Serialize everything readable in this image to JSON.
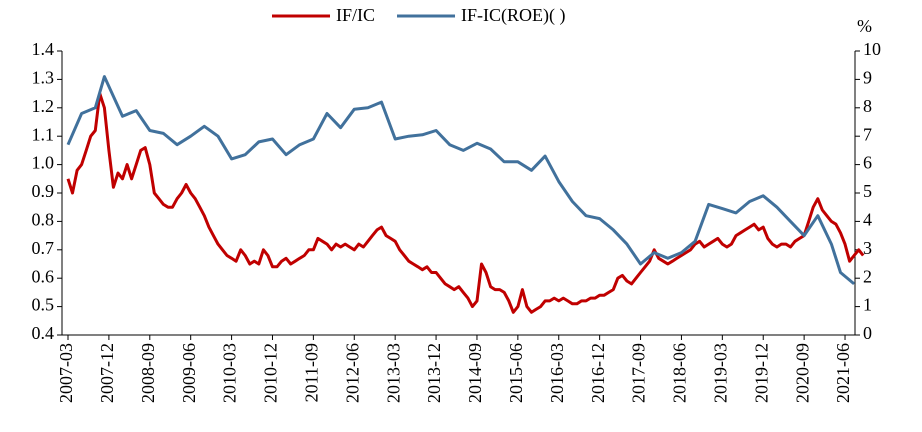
{
  "chart_data": {
    "type": "line",
    "legend": "top",
    "y2label": "%",
    "ylim": [
      0.4,
      1.4
    ],
    "yticks": [
      0.4,
      0.5,
      0.6,
      0.7,
      0.8,
      0.9,
      {
        "value": 1,
        "label": "1.0"
      },
      1.1,
      1.2,
      1.3,
      1.4
    ],
    "y2lim": [
      0,
      10
    ],
    "y2ticks": [
      0,
      1,
      2,
      3,
      4,
      5,
      6,
      7,
      8,
      9,
      10
    ],
    "xticks": [
      "2007-03",
      "2007-12",
      "2008-09",
      "2009-06",
      "2010-03",
      "2010-12",
      "2011-09",
      "2012-06",
      "2013-03",
      "2013-12",
      "2014-09",
      "2015-06",
      "2016-03",
      "2016-12",
      "2017-09",
      "2018-06",
      "2019-03",
      "2019-12",
      "2020-09",
      "2021-06"
    ],
    "series": [
      {
        "name": "IF/IC",
        "color": "#c00000",
        "axis": "y",
        "x": [
          "2007-03",
          "2007-04",
          "2007-05",
          "2007-06",
          "2007-07",
          "2007-08",
          "2007-09",
          "2007-10",
          "2007-11",
          "2007-12",
          "2008-01",
          "2008-02",
          "2008-03",
          "2008-04",
          "2008-05",
          "2008-06",
          "2008-07",
          "2008-08",
          "2008-09",
          "2008-10",
          "2008-11",
          "2008-12",
          "2009-01",
          "2009-02",
          "2009-03",
          "2009-04",
          "2009-05",
          "2009-06",
          "2009-07",
          "2009-08",
          "2009-09",
          "2009-10",
          "2009-11",
          "2009-12",
          "2010-01",
          "2010-02",
          "2010-03",
          "2010-04",
          "2010-05",
          "2010-06",
          "2010-07",
          "2010-08",
          "2010-09",
          "2010-10",
          "2010-11",
          "2010-12",
          "2011-01",
          "2011-02",
          "2011-03",
          "2011-04",
          "2011-05",
          "2011-06",
          "2011-07",
          "2011-08",
          "2011-09",
          "2011-10",
          "2011-11",
          "2011-12",
          "2012-01",
          "2012-02",
          "2012-03",
          "2012-04",
          "2012-05",
          "2012-06",
          "2012-07",
          "2012-08",
          "2012-09",
          "2012-10",
          "2012-11",
          "2012-12",
          "2013-01",
          "2013-02",
          "2013-03",
          "2013-04",
          "2013-05",
          "2013-06",
          "2013-07",
          "2013-08",
          "2013-09",
          "2013-10",
          "2013-11",
          "2013-12",
          "2014-01",
          "2014-02",
          "2014-03",
          "2014-04",
          "2014-05",
          "2014-06",
          "2014-07",
          "2014-08",
          "2014-09",
          "2014-10",
          "2014-11",
          "2014-12",
          "2015-01",
          "2015-02",
          "2015-03",
          "2015-04",
          "2015-05",
          "2015-06",
          "2015-07",
          "2015-08",
          "2015-09",
          "2015-10",
          "2015-11",
          "2015-12",
          "2016-01",
          "2016-02",
          "2016-03",
          "2016-04",
          "2016-05",
          "2016-06",
          "2016-07",
          "2016-08",
          "2016-09",
          "2016-10",
          "2016-11",
          "2016-12",
          "2017-01",
          "2017-02",
          "2017-03",
          "2017-04",
          "2017-05",
          "2017-06",
          "2017-07",
          "2017-08",
          "2017-09",
          "2017-10",
          "2017-11",
          "2017-12",
          "2018-01",
          "2018-02",
          "2018-03",
          "2018-04",
          "2018-05",
          "2018-06",
          "2018-07",
          "2018-08",
          "2018-09",
          "2018-10",
          "2018-11",
          "2018-12",
          "2019-01",
          "2019-02",
          "2019-03",
          "2019-04",
          "2019-05",
          "2019-06",
          "2019-07",
          "2019-08",
          "2019-09",
          "2019-10",
          "2019-11",
          "2019-12",
          "2020-01",
          "2020-02",
          "2020-03",
          "2020-04",
          "2020-05",
          "2020-06",
          "2020-07",
          "2020-08",
          "2020-09",
          "2020-10",
          "2020-11",
          "2020-12",
          "2021-01",
          "2021-02",
          "2021-03",
          "2021-04",
          "2021-05",
          "2021-06",
          "2021-07",
          "2021-08",
          "2021-09",
          "2021-10"
        ],
        "values": [
          0.95,
          0.9,
          0.98,
          1.0,
          1.05,
          1.1,
          1.12,
          1.25,
          1.2,
          1.05,
          0.92,
          0.97,
          0.95,
          1.0,
          0.95,
          1.0,
          1.05,
          1.06,
          1.0,
          0.9,
          0.88,
          0.86,
          0.85,
          0.85,
          0.88,
          0.9,
          0.93,
          0.9,
          0.88,
          0.85,
          0.82,
          0.78,
          0.75,
          0.72,
          0.7,
          0.68,
          0.67,
          0.66,
          0.7,
          0.68,
          0.65,
          0.66,
          0.65,
          0.7,
          0.68,
          0.64,
          0.64,
          0.66,
          0.67,
          0.65,
          0.66,
          0.67,
          0.68,
          0.7,
          0.7,
          0.74,
          0.73,
          0.72,
          0.7,
          0.72,
          0.71,
          0.72,
          0.71,
          0.7,
          0.72,
          0.71,
          0.73,
          0.75,
          0.77,
          0.78,
          0.75,
          0.74,
          0.73,
          0.7,
          0.68,
          0.66,
          0.65,
          0.64,
          0.63,
          0.64,
          0.62,
          0.62,
          0.6,
          0.58,
          0.57,
          0.56,
          0.57,
          0.55,
          0.53,
          0.5,
          0.52,
          0.65,
          0.62,
          0.57,
          0.56,
          0.56,
          0.55,
          0.52,
          0.48,
          0.5,
          0.56,
          0.5,
          0.48,
          0.49,
          0.5,
          0.52,
          0.52,
          0.53,
          0.52,
          0.53,
          0.52,
          0.51,
          0.51,
          0.52,
          0.52,
          0.53,
          0.53,
          0.54,
          0.54,
          0.55,
          0.56,
          0.6,
          0.61,
          0.59,
          0.58,
          0.6,
          0.62,
          0.64,
          0.66,
          0.7,
          0.67,
          0.66,
          0.65,
          0.66,
          0.67,
          0.68,
          0.69,
          0.7,
          0.72,
          0.73,
          0.71,
          0.72,
          0.73,
          0.74,
          0.72,
          0.71,
          0.72,
          0.75,
          0.76,
          0.77,
          0.78,
          0.79,
          0.77,
          0.78,
          0.74,
          0.72,
          0.71,
          0.72,
          0.72,
          0.71,
          0.73,
          0.74,
          0.75,
          0.8,
          0.85,
          0.88,
          0.84,
          0.82,
          0.8,
          0.79,
          0.76,
          0.72,
          0.66,
          0.68,
          0.7,
          0.68
        ]
      },
      {
        "name": "IF-IC(ROE)(      )",
        "color": "#41719c",
        "axis": "y2",
        "x": [
          "2007-03",
          "2007-06",
          "2007-09",
          "2007-11",
          "2008-03",
          "2008-06",
          "2008-09",
          "2008-12",
          "2009-03",
          "2009-06",
          "2009-09",
          "2009-12",
          "2010-03",
          "2010-06",
          "2010-09",
          "2010-12",
          "2011-03",
          "2011-06",
          "2011-09",
          "2011-12",
          "2012-03",
          "2012-06",
          "2012-09",
          "2012-12",
          "2013-03",
          "2013-06",
          "2013-09",
          "2013-12",
          "2014-03",
          "2014-06",
          "2014-09",
          "2014-12",
          "2015-03",
          "2015-06",
          "2015-09",
          "2015-12",
          "2016-03",
          "2016-06",
          "2016-09",
          "2016-12",
          "2017-03",
          "2017-06",
          "2017-09",
          "2017-12",
          "2018-03",
          "2018-06",
          "2018-09",
          "2018-12",
          "2019-03",
          "2019-06",
          "2019-09",
          "2019-12",
          "2020-03",
          "2020-06",
          "2020-09",
          "2020-12",
          "2021-03",
          "2021-05",
          "2021-08"
        ],
        "values": [
          6.7,
          7.8,
          8.0,
          9.1,
          7.7,
          7.9,
          7.2,
          7.1,
          6.7,
          7.0,
          7.35,
          7.0,
          6.2,
          6.35,
          6.8,
          6.9,
          6.35,
          6.7,
          6.9,
          7.8,
          7.3,
          7.95,
          8.0,
          8.2,
          6.9,
          7.0,
          7.05,
          7.2,
          6.7,
          6.5,
          6.75,
          6.55,
          6.1,
          6.1,
          5.8,
          6.3,
          5.4,
          4.7,
          4.2,
          4.1,
          3.7,
          3.2,
          2.5,
          2.9,
          2.7,
          2.9,
          3.3,
          4.6,
          4.45,
          4.3,
          4.7,
          4.9,
          4.5,
          4.0,
          3.5,
          4.2,
          3.2,
          2.2,
          1.8
        ]
      }
    ]
  }
}
